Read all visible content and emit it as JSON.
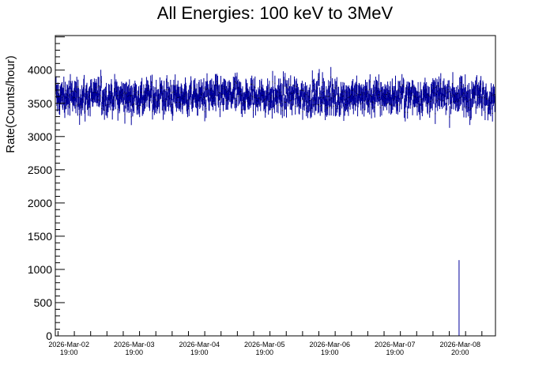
{
  "chart_data": {
    "type": "line",
    "title": "All Energies:  100 keV to 3MeV",
    "xlabel": "",
    "ylabel": "Rate(Counts/hour)",
    "ylim": [
      0,
      4520
    ],
    "y_ticks": [
      0,
      500,
      1000,
      1500,
      2000,
      2500,
      3000,
      3500,
      4000
    ],
    "x_unit": "hours since 2026-Mar-02 19:00",
    "xlim": [
      -5,
      157
    ],
    "x_ticks": [
      {
        "hours": 0,
        "date": "2026-Mar-02",
        "time": "19:00"
      },
      {
        "hours": 24,
        "date": "2026-Mar-03",
        "time": "19:00"
      },
      {
        "hours": 48,
        "date": "2026-Mar-04",
        "time": "19:00"
      },
      {
        "hours": 72,
        "date": "2026-Mar-05",
        "time": "19:00"
      },
      {
        "hours": 96,
        "date": "2026-Mar-06",
        "time": "19:00"
      },
      {
        "hours": 120,
        "date": "2026-Mar-07",
        "time": "19:00"
      },
      {
        "hours": 144,
        "date": "2026-Mar-08",
        "time": "20:00"
      }
    ],
    "series": [
      {
        "name": "rate",
        "color": "#00009c",
        "bin_hours": 0.17,
        "mean": 3600,
        "spread": 140,
        "error": 130,
        "range_observed": [
          3000,
          4270
        ],
        "outliers": [
          {
            "hours": 143.6,
            "value": 1140
          }
        ]
      }
    ],
    "grid": false,
    "legend": "none"
  }
}
